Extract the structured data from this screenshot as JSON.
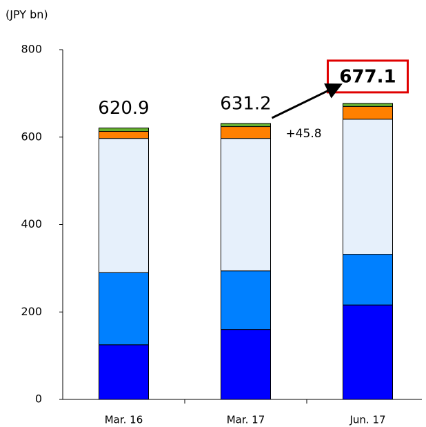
{
  "chart_data": {
    "type": "stacked-bar",
    "y_label": "(JPY bn)",
    "categories": [
      "Mar. 16",
      "Mar. 17",
      "Jun. 17"
    ],
    "series": [
      {
        "color": "#0000ff",
        "values": [
          125,
          160,
          216
        ]
      },
      {
        "color": "#0080ff",
        "values": [
          165,
          134,
          116
        ]
      },
      {
        "color": "#e6f0fb",
        "values": [
          307,
          303,
          309
        ]
      },
      {
        "color": "#ff8000",
        "values": [
          16,
          27,
          29
        ]
      },
      {
        "color": "#66b032",
        "values": [
          7.9,
          7.2,
          7.1
        ]
      }
    ],
    "totals": [
      620.9,
      631.2,
      677.1
    ],
    "change_label": "+45.8",
    "ylim": [
      0,
      800
    ],
    "yticks": [
      0,
      200,
      400,
      600,
      800
    ],
    "grid": false
  }
}
